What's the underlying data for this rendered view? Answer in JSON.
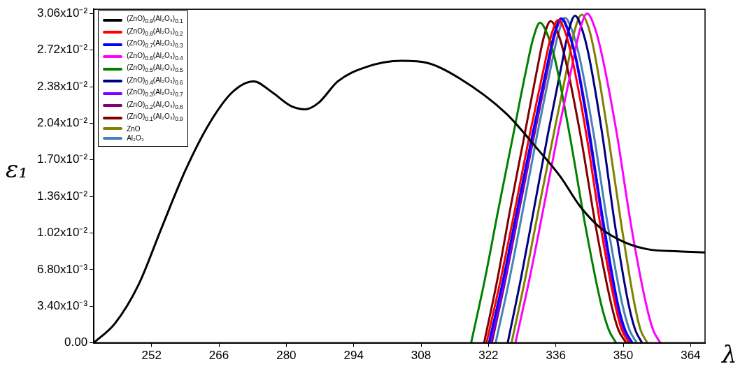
{
  "chart_data": {
    "type": "line",
    "xlabel": "λ",
    "ylabel": "ε₁",
    "xlim": [
      240,
      367
    ],
    "ylim": [
      0,
      0.031
    ],
    "xticks": [
      252,
      266,
      280,
      294,
      308,
      322,
      336,
      350,
      364
    ],
    "yticks": [
      {
        "value": 0,
        "label": "0.00"
      },
      {
        "value": 0.0034,
        "label": "3.40x10⁻³"
      },
      {
        "value": 0.0068,
        "label": "6.80x10⁻³"
      },
      {
        "value": 0.0102,
        "label": "1.02x10⁻²"
      },
      {
        "value": 0.0136,
        "label": "1.36x10⁻²"
      },
      {
        "value": 0.017,
        "label": "1.70x10⁻²"
      },
      {
        "value": 0.0204,
        "label": "2.04x10⁻²"
      },
      {
        "value": 0.0238,
        "label": "2.38x10⁻²"
      },
      {
        "value": 0.0272,
        "label": "2.72x10⁻²"
      },
      {
        "value": 0.0306,
        "label": "3.06x10⁻²"
      }
    ],
    "legend": "top left",
    "marker": "none",
    "line_style": "solid",
    "series": [
      {
        "name": "(ZnO)$_{0.9}$(Al₂O₃)$_{0.1}$",
        "color": "#000000",
        "x": [
          240,
          244.4,
          249.3,
          254.1,
          259,
          263.9,
          268.8,
          273.2,
          277,
          281,
          284,
          286.7,
          290.7,
          296.4,
          304,
          309.4,
          315.9,
          325.7,
          332.2,
          337,
          341,
          345.2,
          350,
          355,
          361.5,
          367
        ],
        "values": [
          0,
          0.0018,
          0.0054,
          0.0107,
          0.016,
          0.0203,
          0.0233,
          0.0243,
          0.0233,
          0.022,
          0.0217,
          0.0223,
          0.0243,
          0.0256,
          0.0262,
          0.026,
          0.0246,
          0.0213,
          0.018,
          0.0154,
          0.0127,
          0.0107,
          0.0094,
          0.0087,
          0.0085,
          0.0084
        ]
      },
      {
        "name": "(ZnO)$_{0.8}$(Al₂O₃)$_{0.2}$",
        "color": "#ff0000",
        "x": [
          321.6,
          324.6,
          327.6,
          330.5,
          333.5,
          335.0,
          336.5,
          338.0,
          339.4,
          342.4,
          345.3,
          348.3,
          349.7,
          351.2
        ],
        "values": [
          0,
          0.006,
          0.0126,
          0.0192,
          0.0255,
          0.0285,
          0.03,
          0.0288,
          0.0264,
          0.0192,
          0.0108,
          0.0036,
          0.0012,
          0
        ]
      },
      {
        "name": "(ZnO)$_{0.7}$(Al₂O₃)$_{0.3}$",
        "color": "#0000ff",
        "x": [
          322.1,
          325.1,
          328.1,
          331.1,
          334.1,
          335.6,
          337.1,
          338.6,
          340.1,
          343.0,
          346.0,
          348.9,
          350.4,
          351.9
        ],
        "values": [
          0,
          0.006,
          0.0127,
          0.0193,
          0.0256,
          0.0286,
          0.03015,
          0.0289,
          0.0265,
          0.0193,
          0.0109,
          0.0036,
          0.0012,
          0
        ]
      },
      {
        "name": "(ZnO)$_{0.6}$(Al₂O₃)$_{0.4}$",
        "color": "#ff00ff",
        "x": [
          327.6,
          330.6,
          333.6,
          336.5,
          339.5,
          341.0,
          342.5,
          344.0,
          345.5,
          348.6,
          351.6,
          354.7,
          356.2,
          357.7
        ],
        "values": [
          0,
          0.0061,
          0.0129,
          0.0196,
          0.026,
          0.0291,
          0.0306,
          0.0294,
          0.0269,
          0.0196,
          0.011,
          0.0037,
          0.0012,
          0
        ]
      },
      {
        "name": "(ZnO)$_{0.5}$(Al₂O₃)$_{0.5}$",
        "color": "#008000",
        "x": [
          318.4,
          321.3,
          324.1,
          327.0,
          329.8,
          331.3,
          332.7,
          334.3,
          335.9,
          339.0,
          342.2,
          345.4,
          347.0,
          348.5
        ],
        "values": [
          0,
          0.006,
          0.0125,
          0.019,
          0.0253,
          0.0283,
          0.02975,
          0.0286,
          0.0262,
          0.019,
          0.0107,
          0.0036,
          0.0012,
          0
        ]
      },
      {
        "name": "(ZnO)$_{0.4}$(Al₂O₃)$_{0.6}$",
        "color": "#000080",
        "x": [
          326.0,
          328.8,
          331.6,
          334.4,
          337.2,
          338.6,
          340.0,
          341.4,
          342.8,
          345.6,
          348.3,
          351.1,
          352.5,
          353.9
        ],
        "values": [
          0,
          0.0061,
          0.0128,
          0.0195,
          0.0258,
          0.0289,
          0.0304,
          0.0292,
          0.0268,
          0.0195,
          0.0109,
          0.0036,
          0.0012,
          0
        ]
      },
      {
        "name": "(ZnO)$_{0.3}$(Al₂O₃)$_{0.7}$",
        "color": "#8000ff",
        "x": [
          322.4,
          325.4,
          328.3,
          331.3,
          334.2,
          335.7,
          337.2,
          338.6,
          340.1,
          342.9,
          345.8,
          348.6,
          350.1,
          351.5
        ],
        "values": [
          0,
          0.006,
          0.0126,
          0.0193,
          0.0256,
          0.0286,
          0.0301,
          0.0289,
          0.0265,
          0.0193,
          0.0108,
          0.0036,
          0.0012,
          0
        ]
      },
      {
        "name": "(ZnO)$_{0.2}$(Al₂O₃)$_{0.8}$",
        "color": "#800080",
        "x": [
          322.7,
          325.6,
          328.5,
          331.5,
          334.4,
          335.8,
          337.3,
          338.7,
          340.2,
          343.1,
          345.9,
          348.8,
          350.3,
          351.7
        ],
        "values": [
          0,
          0.006,
          0.0126,
          0.0193,
          0.0256,
          0.0286,
          0.0301,
          0.0289,
          0.0265,
          0.0193,
          0.0108,
          0.0036,
          0.0012,
          0
        ]
      },
      {
        "name": "(ZnO)$_{0.1}$(Al₂O₃)$_{0.9}$",
        "color": "#800000",
        "x": [
          321.1,
          323.9,
          326.6,
          329.4,
          332.1,
          333.5,
          334.9,
          336.5,
          338.0,
          341.2,
          344.3,
          347.5,
          349.0,
          350.6
        ],
        "values": [
          0,
          0.006,
          0.0126,
          0.0191,
          0.0254,
          0.0284,
          0.0299,
          0.0287,
          0.0263,
          0.0191,
          0.0108,
          0.0036,
          0.0012,
          0
        ]
      },
      {
        "name": "ZnO",
        "color": "#808000",
        "x": [
          326.8,
          329.7,
          332.6,
          335.6,
          338.5,
          339.9,
          341.4,
          342.8,
          344.1,
          346.8,
          349.6,
          352.3,
          353.6,
          355.0
        ],
        "values": [
          0,
          0.0061,
          0.0128,
          0.0195,
          0.0259,
          0.029,
          0.0305,
          0.0293,
          0.0268,
          0.0195,
          0.011,
          0.0037,
          0.0012,
          0
        ]
      },
      {
        "name": "Al₂O₃",
        "color": "#4682b4",
        "x": [
          323.5,
          326.4,
          329.3,
          332.1,
          335.0,
          336.5,
          337.9,
          339.4,
          340.9,
          343.9,
          346.8,
          349.8,
          351.3,
          352.8
        ],
        "values": [
          0,
          0.006,
          0.0127,
          0.0193,
          0.0257,
          0.0287,
          0.0302,
          0.029,
          0.0266,
          0.0193,
          0.0109,
          0.0036,
          0.0012,
          0
        ]
      }
    ]
  }
}
